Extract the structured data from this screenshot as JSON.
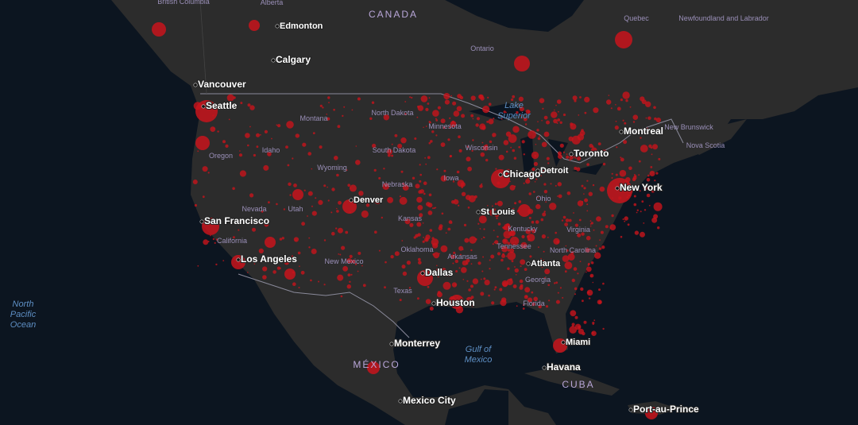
{
  "countries": [
    "CANADA",
    "MÉXICO",
    "CUBA"
  ],
  "cities": [
    "Edmonton",
    "Calgary",
    "Vancouver",
    "Seattle",
    "Montreal",
    "Toronto",
    "Chicago",
    "Detroit",
    "New York",
    "Denver",
    "St Louis",
    "San Francisco",
    "Los Angeles",
    "Dallas",
    "Houston",
    "Monterrey",
    "Miami",
    "Havana",
    "Mexico City",
    "Port-au-Prince",
    "Atlanta"
  ],
  "regions": [
    "British Columbia",
    "Alberta",
    "Quebec",
    "Newfoundland and Labrador",
    "Ontario",
    "New Brunswick",
    "Nova Scotia",
    "Montana",
    "North Dakota",
    "Minnesota",
    "Wisconsin",
    "Idaho",
    "Oregon",
    "South Dakota",
    "Wyoming",
    "Nebraska",
    "Iowa",
    "Nevada",
    "Utah",
    "Kansas",
    "California",
    "Kentucky",
    "Virginia",
    "Oklahoma",
    "Arkansas",
    "Tennessee",
    "North Carolina",
    "Ohio",
    "New Mexico",
    "Texas",
    "Georgia",
    "Florida"
  ],
  "water": [
    "North Pacific Ocean",
    "Gulf of Mexico",
    "Lake Superior"
  ]
}
